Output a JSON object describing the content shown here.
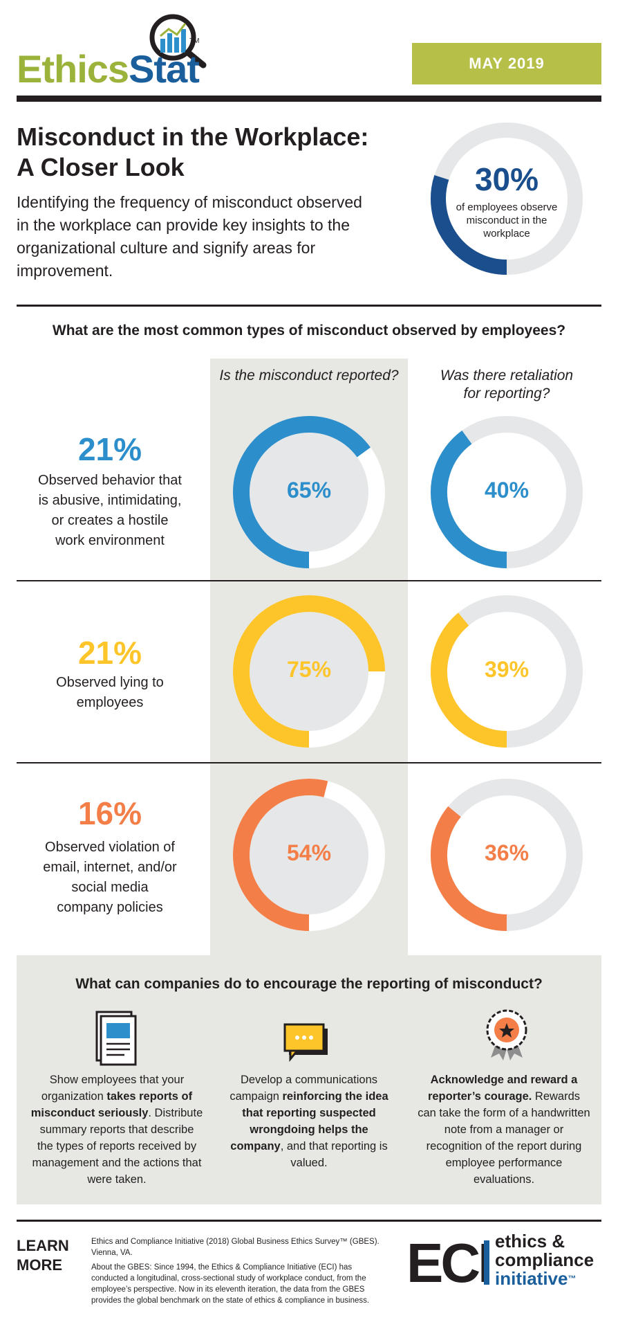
{
  "header": {
    "logo_part1": "Ethics",
    "logo_part2": "Stat",
    "logo_tm": "TM",
    "date": "MAY 2019"
  },
  "intro": {
    "title_line1": "Misconduct in the Workplace:",
    "title_line2": "A Closer Look",
    "body": "Identifying the frequency of misconduct observed in the workplace can provide key insights to the organizational culture and signify areas for improvement."
  },
  "hero": {
    "value": "30%",
    "caption": "of employees observe misconduct in the workplace",
    "color": "#1a4e8c"
  },
  "section_question": "What are the most common types of misconduct observed by employees?",
  "column_headers": {
    "reported": "Is the misconduct reported?",
    "retaliation_line1": "Was there retaliation",
    "retaliation_line2": "for reporting?"
  },
  "rows": [
    {
      "pct": "21%",
      "label": [
        "Observed behavior that",
        "is abusive, intimidating,",
        "or creates a hostile",
        "work environment"
      ],
      "reported": "65%",
      "retaliation": "40%",
      "color": "#2c8ecb"
    },
    {
      "pct": "21%",
      "label": [
        "Observed lying to",
        "employees"
      ],
      "reported": "75%",
      "retaliation": "39%",
      "color": "#fdc52a"
    },
    {
      "pct": "16%",
      "label": [
        "Observed violation of",
        "email, internet, and/or",
        "social media",
        "company policies"
      ],
      "reported": "54%",
      "retaliation": "36%",
      "color": "#f37e47"
    }
  ],
  "chart_data": {
    "type": "pie",
    "title": "Misconduct in the Workplace: A Closer Look",
    "overall": {
      "label": "of employees observe misconduct in the workplace",
      "value": 30
    },
    "categories": [
      "Observed behavior that is abusive, intimidating, or creates a hostile work environment",
      "Observed lying to employees",
      "Observed violation of email, internet, and/or social media company policies"
    ],
    "series": [
      {
        "name": "Observed",
        "values": [
          21,
          21,
          16
        ]
      },
      {
        "name": "Is the misconduct reported?",
        "values": [
          65,
          75,
          54
        ]
      },
      {
        "name": "Was there retaliation for reporting?",
        "values": [
          40,
          39,
          36
        ]
      }
    ]
  },
  "tips": {
    "question": "What can companies do to encourage the reporting of misconduct?",
    "items": [
      {
        "icon": "report-icon",
        "lines": [
          {
            "t": "Show employees that your",
            "b": false
          },
          {
            "t": "organization ",
            "b": false,
            "tb": "takes reports"
          },
          {
            "t": "of misconduct seriously",
            "b": true,
            "after": "."
          },
          {
            "t": "Distribute summary reports that",
            "b": false
          },
          {
            "t": "describe the types of reports",
            "b": false
          },
          {
            "t": "received by management and",
            "b": false
          },
          {
            "t": "the actions that were taken.",
            "b": false
          }
        ],
        "p1": "Show employees that your organization ",
        "p1b": "takes reports of misconduct seriously",
        "p1c": ". Distribute summary reports that describe the types of reports received by management and the actions that were taken."
      },
      {
        "icon": "chat-icon",
        "p1": "Develop a communications campaign ",
        "p1b": "reinforcing the idea that reporting suspected wrongdoing helps the company",
        "p1c": ", and that reporting is valued."
      },
      {
        "icon": "award-icon",
        "p1": "",
        "p1b": "Acknowledge and reward a reporter’s courage.",
        "p1c": " Rewards can take the form of a handwritten note from a manager or recognition of the report during employee performance evaluations."
      }
    ]
  },
  "footer": {
    "learn1": "LEARN",
    "learn2": "MORE",
    "citation": "Ethics and Compliance Initiative (2018) Global Business Ethics Survey™ (GBES). Vienna, VA.",
    "about": "About the GBES: Since 1994, the Ethics & Compliance Initiative (ECI) has conducted a longitudinal, cross-sectional study of workplace conduct, from the employee’s perspective. Now in its eleventh iteration, the data from the GBES provides the global benchmark on the state of ethics & compliance in business.",
    "eci_mark": "ECI",
    "eci_line1": "ethics &",
    "eci_line2": "compliance",
    "eci_line3": "initiative",
    "eci_tm": "™"
  }
}
